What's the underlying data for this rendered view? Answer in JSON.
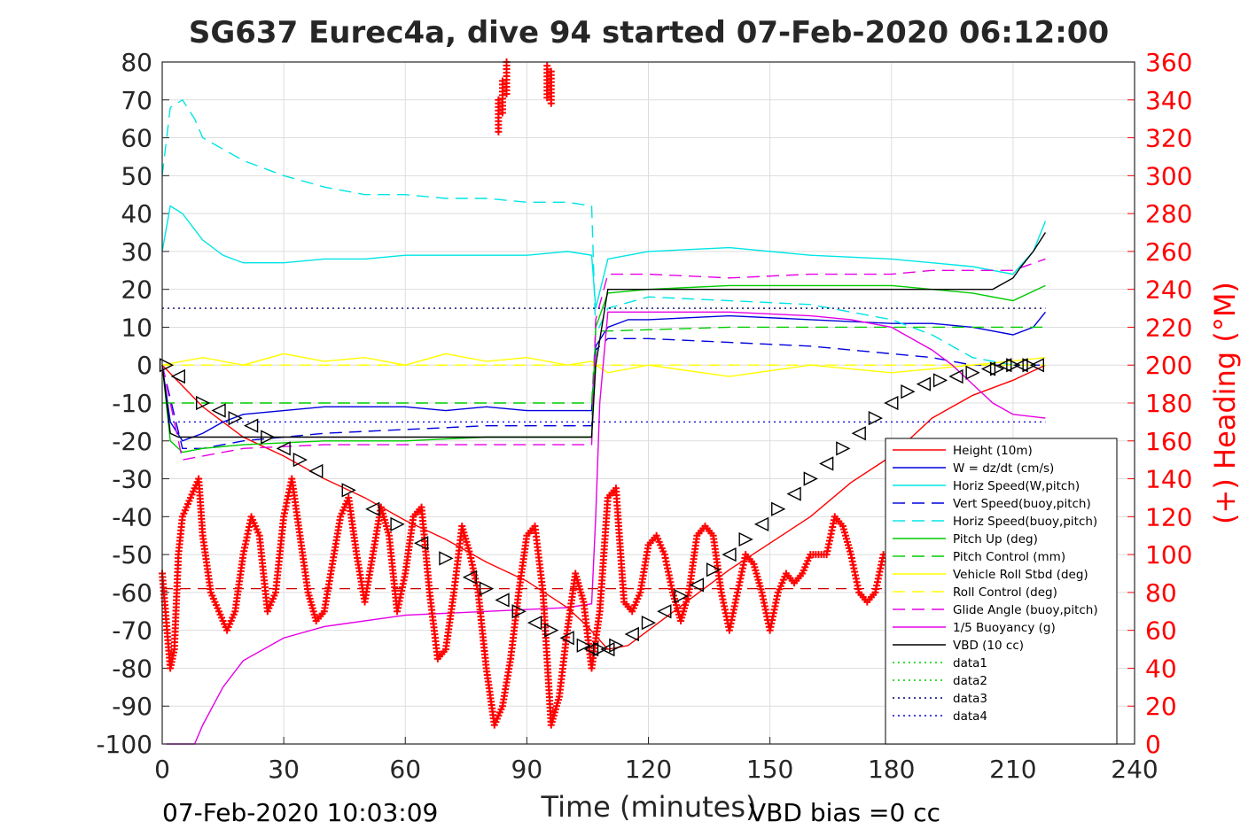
{
  "chart_data": {
    "type": "line",
    "title": "SG637 Eurec4a, dive 94 started 07-Feb-2020 06:12:00",
    "xlabel": "Time (minutes)",
    "ylabel": "",
    "y2label": "(+) Heading (°M)",
    "xlim": [
      0,
      240
    ],
    "ylim": [
      -100,
      80
    ],
    "y2lim": [
      0,
      360
    ],
    "xticks": [
      "0",
      "30",
      "60",
      "90",
      "120",
      "150",
      "180",
      "210",
      "240"
    ],
    "yticks": [
      "80",
      "70",
      "60",
      "50",
      "40",
      "30",
      "20",
      "10",
      "0",
      "-10",
      "-20",
      "-30",
      "-40",
      "-50",
      "-60",
      "-70",
      "-80",
      "-90",
      "-100"
    ],
    "y2ticks": [
      "360",
      "340",
      "320",
      "300",
      "280",
      "260",
      "240",
      "220",
      "200",
      "180",
      "160",
      "140",
      "120",
      "100",
      "80",
      "60",
      "40",
      "20",
      "0"
    ],
    "grid": true,
    "legend_position": "bottom-right",
    "footer_left": "07-Feb-2020 10:03:09",
    "footer_right": "VBD bias =0 cc",
    "series": [
      {
        "name": "Height (10m)",
        "color": "#ff0000",
        "style": "solid",
        "x": [
          0,
          10,
          20,
          30,
          40,
          50,
          60,
          70,
          80,
          90,
          100,
          105,
          110,
          115,
          120,
          130,
          140,
          150,
          160,
          170,
          180,
          190,
          200,
          210,
          218
        ],
        "y": [
          0,
          -11,
          -19,
          -24,
          -30,
          -35,
          -41,
          -46,
          -52,
          -57,
          -64,
          -69,
          -75,
          -74,
          -70,
          -62,
          -54,
          -47,
          -40,
          -31,
          -24,
          -14,
          -8,
          -4,
          0
        ]
      },
      {
        "name": "W = dz/dt (cm/s)",
        "color": "#0000dd",
        "style": "solid",
        "x": [
          0,
          2,
          5,
          10,
          15,
          20,
          30,
          40,
          50,
          60,
          70,
          80,
          90,
          100,
          106,
          107,
          110,
          115,
          120,
          140,
          160,
          180,
          190,
          200,
          210,
          215,
          218
        ],
        "y": [
          0,
          -15,
          -20,
          -18,
          -15,
          -13,
          -12,
          -11,
          -11,
          -11,
          -12,
          -11,
          -12,
          -12,
          -12,
          5,
          10,
          12,
          12,
          13,
          12,
          11,
          11,
          10,
          8,
          10,
          14
        ]
      },
      {
        "name": "Horiz Speed(W,pitch)",
        "color": "#00e5e5",
        "style": "solid",
        "x": [
          0,
          2,
          5,
          10,
          15,
          20,
          30,
          40,
          50,
          60,
          70,
          80,
          90,
          100,
          106,
          107,
          110,
          115,
          120,
          140,
          160,
          180,
          190,
          200,
          210,
          215,
          218
        ],
        "y": [
          30,
          42,
          40,
          33,
          29,
          27,
          27,
          28,
          28,
          29,
          29,
          29,
          29,
          30,
          29,
          15,
          28,
          29,
          30,
          31,
          29,
          28,
          27,
          26,
          24,
          30,
          38
        ]
      },
      {
        "name": "Vert Speed(buoy,pitch)",
        "color": "#0000dd",
        "style": "dashed",
        "x": [
          0,
          5,
          10,
          20,
          40,
          60,
          80,
          100,
          106,
          107,
          110,
          120,
          140,
          160,
          180,
          190,
          200,
          210,
          218
        ],
        "y": [
          0,
          -22,
          -22,
          -20,
          -18,
          -17,
          -16,
          -16,
          -16,
          4,
          7,
          7,
          6,
          5,
          3,
          2,
          0,
          0,
          0
        ]
      },
      {
        "name": "Horiz Speed(buoy,pitch)",
        "color": "#00e5e5",
        "style": "dashed",
        "x": [
          0,
          2,
          5,
          8,
          10,
          20,
          30,
          40,
          50,
          60,
          70,
          80,
          90,
          100,
          106,
          107,
          110,
          120,
          140,
          160,
          170,
          180,
          190,
          200,
          210,
          218
        ],
        "y": [
          50,
          68,
          70,
          65,
          60,
          54,
          50,
          47,
          45,
          45,
          44,
          44,
          43,
          43,
          42,
          8,
          15,
          18,
          17,
          16,
          14,
          12,
          8,
          2,
          0,
          0
        ]
      },
      {
        "name": "Pitch Up (deg)",
        "color": "#00cc00",
        "style": "solid",
        "x": [
          0,
          2,
          5,
          10,
          20,
          40,
          60,
          80,
          100,
          106,
          107,
          110,
          120,
          140,
          160,
          180,
          190,
          200,
          210,
          218
        ],
        "y": [
          0,
          -20,
          -23,
          -22,
          -21,
          -20,
          -20,
          -19,
          -19,
          -19,
          10,
          19,
          20,
          21,
          21,
          21,
          20,
          19,
          17,
          21
        ]
      },
      {
        "name": "Pitch Control (mm)",
        "color": "#00cc00",
        "style": "dashed",
        "x": [
          0,
          5,
          20,
          60,
          106,
          107,
          110,
          140,
          180,
          200,
          218
        ],
        "y": [
          -10,
          -10,
          -10,
          -10,
          -10,
          9,
          9,
          10,
          10,
          10,
          10
        ]
      },
      {
        "name": "Vehicle Roll Stbd (deg)",
        "color": "#ffff00",
        "style": "solid",
        "x": [
          0,
          10,
          20,
          30,
          40,
          50,
          60,
          70,
          80,
          90,
          100,
          106,
          107,
          110,
          120,
          140,
          160,
          180,
          200,
          218
        ],
        "y": [
          0,
          2,
          0,
          3,
          1,
          2,
          0,
          3,
          1,
          2,
          0,
          1,
          0,
          -2,
          0,
          -3,
          0,
          -2,
          0,
          2
        ]
      },
      {
        "name": "Roll Control (deg)",
        "color": "#ffff00",
        "style": "dashed",
        "x": [
          0,
          20,
          40,
          60,
          80,
          100,
          106,
          107,
          120,
          140,
          160,
          180,
          200,
          218
        ],
        "y": [
          0,
          0,
          0,
          0,
          0,
          0,
          0,
          0,
          0,
          0,
          0,
          0,
          0,
          0
        ]
      },
      {
        "name": "Glide Angle (buoy,pitch)",
        "color": "#e500e5",
        "style": "dashed",
        "x": [
          0,
          5,
          10,
          20,
          40,
          60,
          80,
          100,
          106,
          107,
          110,
          120,
          140,
          160,
          180,
          190,
          200,
          210,
          218
        ],
        "y": [
          0,
          -25,
          -24,
          -22,
          -21,
          -21,
          -21,
          -21,
          -21,
          12,
          24,
          24,
          23,
          24,
          24,
          25,
          25,
          25,
          28
        ]
      },
      {
        "name": "1/5 Buoyancy (g)",
        "color": "#e500e5",
        "style": "solid",
        "x": [
          1,
          5,
          8,
          10,
          15,
          20,
          30,
          40,
          60,
          80,
          100,
          106,
          107,
          108,
          110,
          120,
          140,
          160,
          170,
          180,
          190,
          195,
          200,
          205,
          210,
          218
        ],
        "y": [
          -100,
          -100,
          -100,
          -95,
          -85,
          -78,
          -72,
          -69,
          -66,
          -65,
          -64,
          -63,
          -40,
          -10,
          14,
          14,
          14,
          13,
          12,
          10,
          4,
          0,
          -5,
          -10,
          -13,
          -14
        ]
      },
      {
        "name": "VBD (10 cc)",
        "color": "#000000",
        "style": "solid",
        "x": [
          0,
          2,
          4,
          10,
          50,
          106,
          107,
          110,
          120,
          160,
          200,
          205,
          210,
          212,
          215,
          218
        ],
        "y": [
          0,
          -18,
          -19,
          -19,
          -19,
          -19,
          0,
          20,
          20,
          20,
          20,
          20,
          23,
          26,
          30,
          35
        ]
      },
      {
        "name": "data1",
        "color": "#00cc00",
        "style": "dotted",
        "x": [],
        "y": []
      },
      {
        "name": "data2",
        "color": "#00cc00",
        "style": "dotted",
        "x": [],
        "y": []
      },
      {
        "name": "data3",
        "color": "#000066",
        "style": "dotted",
        "x": [
          0,
          218
        ],
        "y": [
          15,
          15
        ]
      },
      {
        "name": "data4",
        "color": "#0000dd",
        "style": "dotted",
        "x": [
          0,
          218
        ],
        "y": [
          -15,
          -15
        ]
      }
    ],
    "heading": {
      "name": "(+) Heading (°M)",
      "color": "#ff0000",
      "marker": "+",
      "axis": "right",
      "x": [
        0,
        2,
        3,
        4,
        5,
        7,
        9,
        10,
        12,
        14,
        16,
        18,
        20,
        22,
        24,
        26,
        28,
        30,
        32,
        34,
        36,
        38,
        40,
        42,
        44,
        46,
        48,
        50,
        52,
        54,
        56,
        58,
        60,
        62,
        64,
        66,
        68,
        70,
        72,
        74,
        76,
        78,
        80,
        82,
        84,
        86,
        88,
        90,
        92,
        94,
        96,
        98,
        100,
        102,
        104,
        106,
        108,
        110,
        112,
        114,
        116,
        118,
        120,
        122,
        124,
        126,
        128,
        130,
        132,
        134,
        136,
        138,
        140,
        142,
        144,
        146,
        148,
        150,
        152,
        154,
        156,
        158,
        160,
        162,
        164,
        166,
        168,
        170,
        172,
        174,
        176,
        178,
        180
      ],
      "y": [
        90,
        40,
        50,
        100,
        120,
        130,
        140,
        110,
        80,
        70,
        60,
        70,
        100,
        120,
        110,
        70,
        80,
        120,
        140,
        110,
        80,
        65,
        70,
        95,
        120,
        130,
        100,
        75,
        100,
        125,
        110,
        70,
        90,
        120,
        125,
        80,
        45,
        50,
        80,
        115,
        100,
        80,
        40,
        10,
        20,
        45,
        80,
        110,
        115,
        80,
        10,
        25,
        60,
        90,
        75,
        40,
        70,
        130,
        135,
        75,
        70,
        80,
        105,
        110,
        100,
        80,
        65,
        80,
        110,
        115,
        110,
        80,
        60,
        80,
        100,
        95,
        80,
        60,
        80,
        90,
        85,
        90,
        100,
        100,
        100,
        120,
        115,
        100,
        80,
        75,
        80,
        100,
        100
      ]
    },
    "heading_wrap": {
      "x": [
        83,
        84,
        85,
        95,
        96
      ],
      "y": [
        340,
        350,
        360,
        358,
        355
      ]
    },
    "height_markers": {
      "color": "#000000",
      "x": [
        1,
        4,
        10,
        14,
        18,
        22,
        26,
        30,
        34,
        38,
        46,
        52,
        58,
        64,
        70,
        76,
        80,
        84,
        88,
        92,
        96,
        100,
        104,
        106,
        108,
        110,
        112,
        116,
        120,
        124,
        128,
        132,
        136,
        140,
        144,
        148,
        152,
        156,
        160,
        164,
        168,
        172,
        176,
        180,
        184,
        188,
        192,
        196,
        200,
        204,
        206,
        208,
        210,
        212,
        214,
        216
      ],
      "y": [
        0,
        -3,
        -10,
        -12,
        -14,
        -16,
        -19,
        -22,
        -25,
        -28,
        -33,
        -38,
        -42,
        -47,
        -51,
        -56,
        -59,
        -62,
        -65,
        -68,
        -70,
        -72,
        -74,
        -75,
        -75,
        -75,
        -74,
        -71,
        -68,
        -65,
        -61,
        -58,
        -54,
        -50,
        -46,
        -42,
        -38,
        -34,
        -30,
        -26,
        -22,
        -18,
        -14,
        -10,
        -7,
        -5,
        -4,
        -3,
        -2,
        -1,
        -1,
        0,
        0,
        0,
        0,
        0
      ]
    },
    "heading_ref": {
      "color": "#cc0000",
      "style": "dashed",
      "y2": 82
    }
  },
  "colors": {
    "frame": "#262626",
    "grid": "#dddddd",
    "legend_border": "#000000"
  }
}
